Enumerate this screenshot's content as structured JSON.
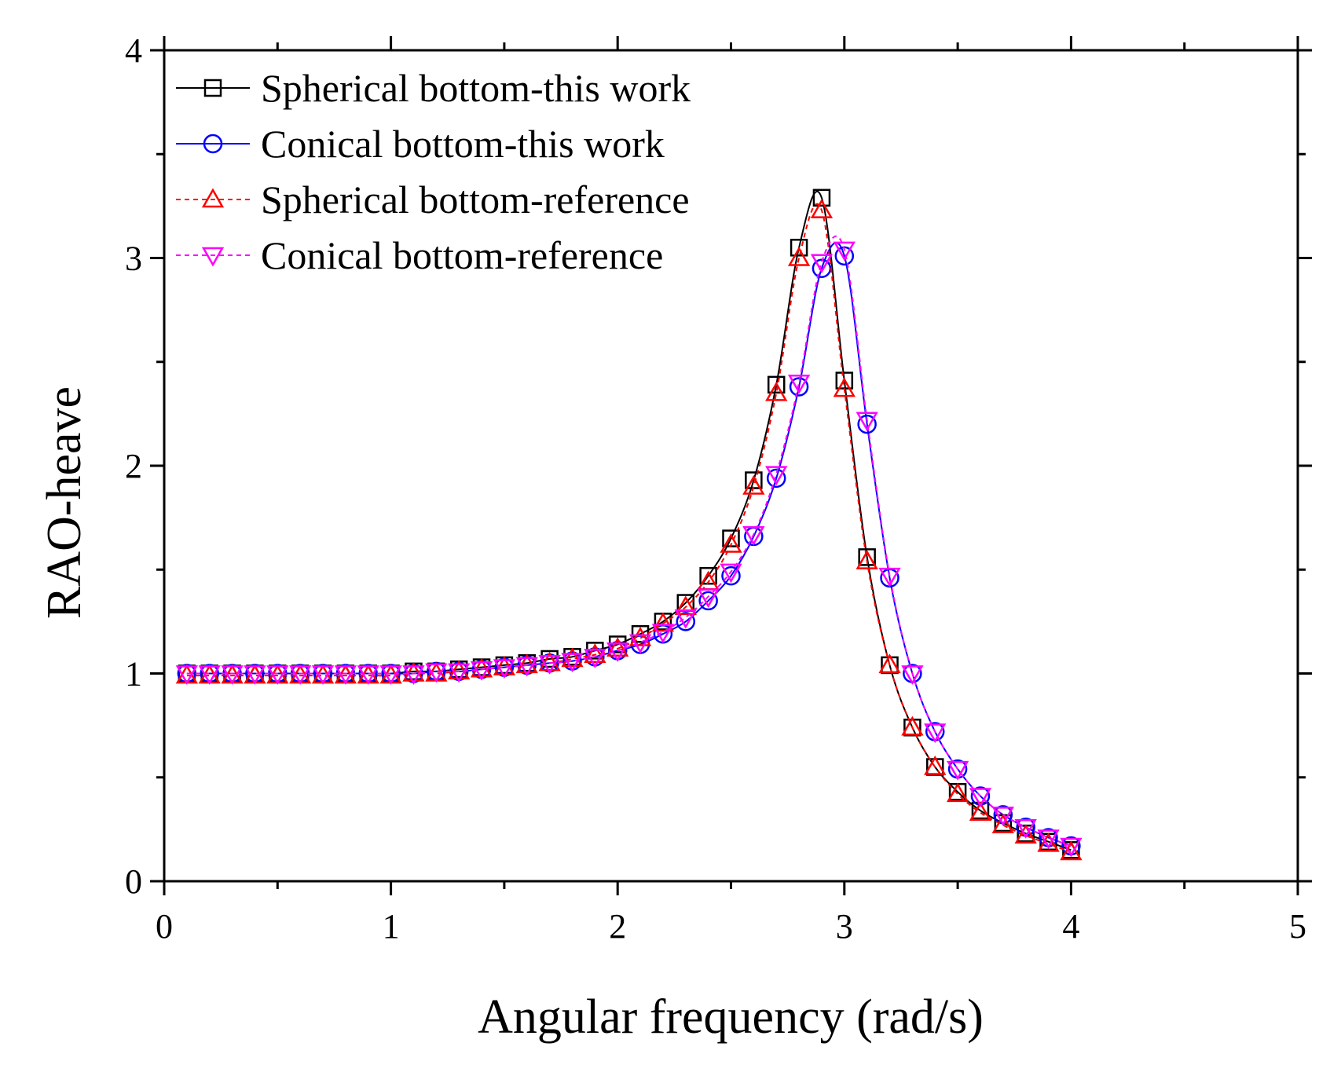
{
  "chart_data": {
    "type": "line",
    "title": "",
    "xlabel": "Angular frequency (rad/s)",
    "ylabel": "RAO-heave",
    "xlim": [
      0,
      5
    ],
    "ylim": [
      0,
      4
    ],
    "xticks": [
      "0",
      "1",
      "2",
      "3",
      "4",
      "5"
    ],
    "yticks": [
      "0",
      "1",
      "2",
      "3",
      "4"
    ],
    "legend_position": "top-left",
    "series": [
      {
        "name": "Spherical bottom-this work",
        "color": "#000000",
        "linestyle": "solid",
        "marker": "square",
        "x": [
          0.1,
          0.2,
          0.3,
          0.4,
          0.5,
          0.6,
          0.7,
          0.8,
          0.9,
          1.0,
          1.1,
          1.2,
          1.3,
          1.4,
          1.5,
          1.6,
          1.7,
          1.8,
          1.9,
          2.0,
          2.1,
          2.2,
          2.3,
          2.4,
          2.5,
          2.6,
          2.7,
          2.8,
          2.9,
          3.0,
          3.1,
          3.2,
          3.3,
          3.4,
          3.5,
          3.6,
          3.7,
          3.8,
          3.9,
          4.0
        ],
        "y": [
          1.0,
          1.0,
          1.0,
          1.0,
          1.0,
          1.0,
          1.0,
          1.0,
          1.0,
          1.0,
          1.01,
          1.01,
          1.02,
          1.03,
          1.04,
          1.05,
          1.07,
          1.08,
          1.11,
          1.14,
          1.19,
          1.25,
          1.34,
          1.47,
          1.65,
          1.93,
          2.39,
          3.05,
          3.29,
          2.41,
          1.56,
          1.04,
          0.74,
          0.55,
          0.43,
          0.34,
          0.28,
          0.23,
          0.19,
          0.15
        ]
      },
      {
        "name": "Conical bottom-this work",
        "color": "#0000ff",
        "linestyle": "solid",
        "marker": "circle",
        "x": [
          0.1,
          0.2,
          0.3,
          0.4,
          0.5,
          0.6,
          0.7,
          0.8,
          0.9,
          1.0,
          1.1,
          1.2,
          1.3,
          1.4,
          1.5,
          1.6,
          1.7,
          1.8,
          1.9,
          2.0,
          2.1,
          2.2,
          2.3,
          2.4,
          2.5,
          2.6,
          2.7,
          2.8,
          2.9,
          3.0,
          3.1,
          3.2,
          3.3,
          3.4,
          3.5,
          3.6,
          3.7,
          3.8,
          3.9,
          4.0
        ],
        "y": [
          1.0,
          1.0,
          1.0,
          1.0,
          1.0,
          1.0,
          1.0,
          1.0,
          1.0,
          1.0,
          1.0,
          1.01,
          1.01,
          1.02,
          1.03,
          1.04,
          1.05,
          1.06,
          1.08,
          1.11,
          1.14,
          1.19,
          1.25,
          1.35,
          1.47,
          1.66,
          1.94,
          2.38,
          2.95,
          3.01,
          2.2,
          1.46,
          1.0,
          0.72,
          0.54,
          0.41,
          0.32,
          0.26,
          0.21,
          0.17
        ]
      },
      {
        "name": "Spherical bottom-reference",
        "color": "#ff0000",
        "linestyle": "dashed",
        "marker": "triangle-up",
        "x": [
          0.1,
          0.2,
          0.3,
          0.4,
          0.5,
          0.6,
          0.7,
          0.8,
          0.9,
          1.0,
          1.1,
          1.2,
          1.3,
          1.4,
          1.5,
          1.6,
          1.7,
          1.8,
          1.9,
          2.0,
          2.1,
          2.2,
          2.3,
          2.4,
          2.5,
          2.6,
          2.7,
          2.8,
          2.9,
          3.0,
          3.1,
          3.2,
          3.3,
          3.4,
          3.5,
          3.6,
          3.7,
          3.8,
          3.9,
          4.0
        ],
        "y": [
          0.99,
          0.99,
          0.99,
          0.99,
          0.99,
          0.99,
          0.99,
          0.99,
          0.99,
          0.99,
          1.0,
          1.0,
          1.01,
          1.02,
          1.03,
          1.04,
          1.05,
          1.07,
          1.09,
          1.12,
          1.17,
          1.24,
          1.32,
          1.44,
          1.62,
          1.9,
          2.35,
          3.0,
          3.23,
          2.37,
          1.54,
          1.04,
          0.74,
          0.55,
          0.42,
          0.33,
          0.27,
          0.22,
          0.18,
          0.14
        ]
      },
      {
        "name": "Conical bottom-reference",
        "color": "#ff00ff",
        "linestyle": "dashed",
        "marker": "triangle-down",
        "x": [
          0.1,
          0.2,
          0.3,
          0.4,
          0.5,
          0.6,
          0.7,
          0.8,
          0.9,
          1.0,
          1.1,
          1.2,
          1.3,
          1.4,
          1.5,
          1.6,
          1.7,
          1.8,
          1.9,
          2.0,
          2.1,
          2.2,
          2.3,
          2.4,
          2.5,
          2.6,
          2.7,
          2.8,
          2.9,
          3.0,
          3.1,
          3.2,
          3.3,
          3.4,
          3.5,
          3.6,
          3.7,
          3.8,
          3.9,
          4.0
        ],
        "y": [
          1.0,
          1.0,
          1.0,
          1.0,
          1.0,
          1.0,
          1.0,
          1.0,
          1.0,
          1.0,
          1.0,
          1.01,
          1.01,
          1.02,
          1.03,
          1.04,
          1.05,
          1.06,
          1.08,
          1.11,
          1.15,
          1.2,
          1.27,
          1.37,
          1.49,
          1.67,
          1.96,
          2.4,
          2.98,
          3.04,
          2.22,
          1.47,
          1.0,
          0.72,
          0.54,
          0.41,
          0.32,
          0.26,
          0.21,
          0.17
        ]
      }
    ]
  }
}
